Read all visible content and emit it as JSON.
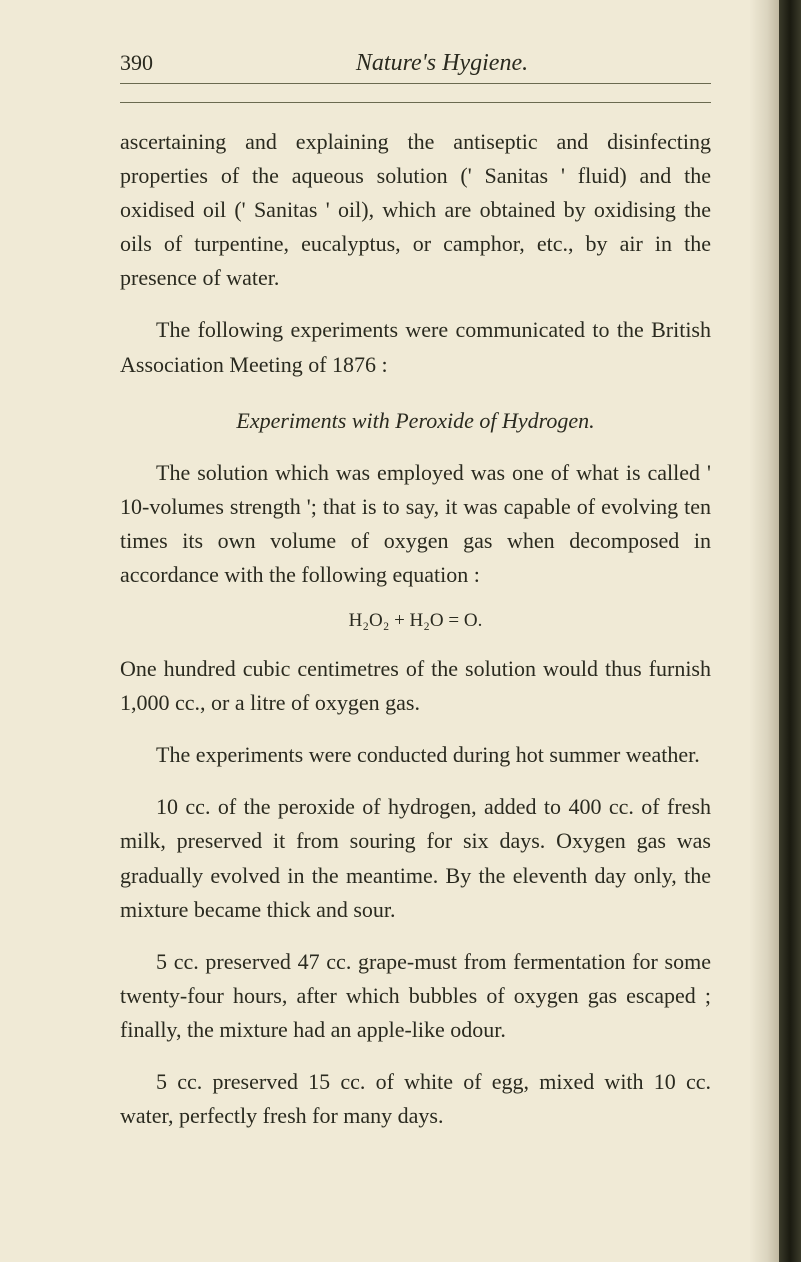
{
  "page": {
    "number": "390",
    "running_title": "Nature's Hygiene.",
    "background_color": "#f0ead6",
    "text_color": "#2a2a1f",
    "font_family": "Georgia, Times New Roman, serif",
    "body_fontsize": 22,
    "line_height": 1.55,
    "rule_color": "#6a6a50"
  },
  "paragraphs": {
    "p1": "ascertaining and explaining the antiseptic and disinfecting properties of the aqueous solution (' Sanitas ' fluid) and the oxidised oil (' Sanitas ' oil), which are obtained by oxidising the oils of turpentine, eucalyptus, or camphor, etc., by air in the presence of water.",
    "p2": "The following experiments were communicated to the British Association Meeting of 1876 :",
    "section_title": "Experiments with Peroxide of Hydrogen.",
    "p3": "The solution which was employed was one of what is called ' 10-volumes strength '; that is to say, it was capable of evolving ten times its own volume of oxygen gas when decomposed in accordance with the following equation :",
    "formula": "H₂O₂ + H₂O = O.",
    "p4": "One hundred cubic centimetres of the solution would thus furnish 1,000 cc., or a litre of oxygen gas.",
    "p5": "The experiments were conducted during hot summer weather.",
    "p6": "10 cc. of the peroxide of hydrogen, added to 400 cc. of fresh milk, preserved it from souring for six days. Oxygen gas was gradually evolved in the meantime. By the eleventh day only, the mixture became thick and sour.",
    "p7": "5 cc. preserved 47 cc. grape-must from fermentation for some twenty-four hours, after which bubbles of oxygen gas escaped ; finally, the mixture had an apple-like odour.",
    "p8": "5 cc. preserved 15 cc. of white of egg, mixed with 10 cc. water, perfectly fresh for many days."
  }
}
